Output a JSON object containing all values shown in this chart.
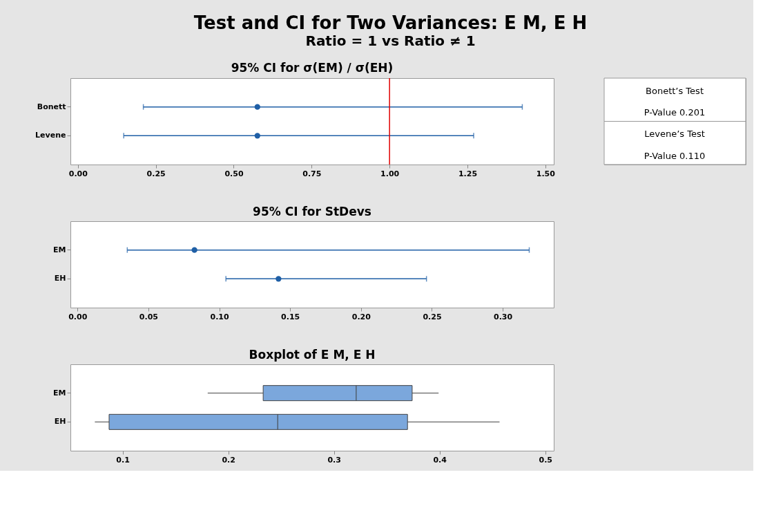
{
  "chart_data": [
    {
      "type": "other",
      "title": "Test and CI for Two Variances: E M, E H",
      "subtitle": "Ratio = 1 vs Ratio ≠ 1"
    },
    {
      "type": "scatter",
      "orientation": "horizontal",
      "title": "95% CI for σ(EM) / σ(EH)",
      "categories": [
        "Bonett",
        "Levene"
      ],
      "series": [
        {
          "color": "#1f5fa6",
          "values": [
            0.576,
            0.576
          ],
          "errors": [
            [
              0.21,
              1.426
            ],
            [
              0.147,
              1.27
            ]
          ]
        }
      ],
      "xlim": [
        -0.024,
        1.527
      ],
      "xticks": [
        {
          "value": 0,
          "label": "0.00"
        },
        {
          "value": 0.25,
          "label": "0.25"
        },
        {
          "value": 0.5,
          "label": "0.50"
        },
        {
          "value": 0.75,
          "label": "0.75"
        },
        {
          "value": 1,
          "label": "1.00"
        },
        {
          "value": 1.25,
          "label": "1.25"
        },
        {
          "value": 1.5,
          "label": "1.50"
        }
      ],
      "ref_lines": [
        {
          "axis": "x",
          "value": 1,
          "color": "#e00000"
        }
      ],
      "marker": "circle",
      "grid": false
    },
    {
      "type": "other",
      "annotations": [
        "Bonett’s Test",
        "P-Value    0.201",
        "Levene’s Test",
        "P-Value    0.110"
      ]
    },
    {
      "type": "scatter",
      "orientation": "horizontal",
      "title": "95% CI for StDevs",
      "categories": [
        "EM",
        "EH"
      ],
      "series": [
        {
          "color": "#1f5fa6",
          "values": [
            0.0825,
            0.1418
          ],
          "errors": [
            [
              0.0351,
              0.3187
            ],
            [
              0.1047,
              0.2462
            ]
          ]
        }
      ],
      "xlim": [
        -0.005,
        0.336
      ],
      "xticks": [
        {
          "value": 0,
          "label": "0.00"
        },
        {
          "value": 0.05,
          "label": "0.05"
        },
        {
          "value": 0.1,
          "label": "0.10"
        },
        {
          "value": 0.15,
          "label": "0.15"
        },
        {
          "value": 0.2,
          "label": "0.20"
        },
        {
          "value": 0.25,
          "label": "0.25"
        },
        {
          "value": 0.3,
          "label": "0.30"
        }
      ],
      "marker": "circle",
      "grid": false
    },
    {
      "type": "box",
      "orientation": "horizontal",
      "title": "Boxplot of E M, E H",
      "categories": [
        "EM",
        "EH"
      ],
      "series": [
        {
          "color": "#7ba7dc",
          "boxes": [
            {
              "low": 0.1805,
              "q1": 0.233,
              "median": 0.321,
              "q3": 0.374,
              "high": 0.399
            },
            {
              "low": 0.0737,
              "q1": 0.0872,
              "median": 0.2468,
              "q3": 0.3696,
              "high": 0.4567
            }
          ]
        }
      ],
      "xlim": [
        0.0506,
        0.508
      ],
      "xticks": [
        0.1,
        0.2,
        0.3,
        0.4,
        0.5
      ],
      "grid": false
    }
  ]
}
